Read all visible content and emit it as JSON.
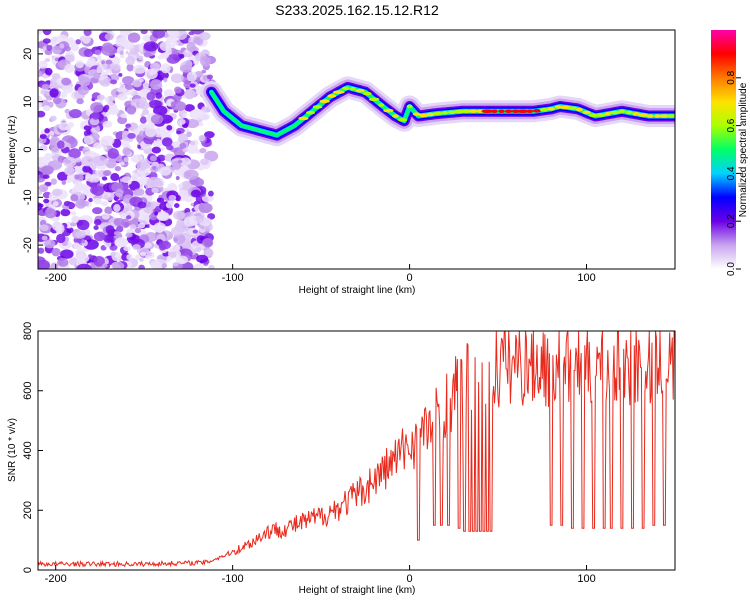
{
  "title": "S233.2025.162.15.12.R12",
  "chart_data": [
    {
      "type": "heatmap",
      "xlabel": "Height of straight line (km)",
      "ylabel": "Frequency (Hz)",
      "xlim": [
        -210,
        150
      ],
      "ylim": [
        -25,
        25
      ],
      "x_ticks": [
        "-200",
        "-100",
        "0",
        "100"
      ],
      "y_ticks": [
        "20",
        "10",
        "0",
        "-10",
        "-20"
      ],
      "noise_region_x": [
        -210,
        -112
      ],
      "ridge": {
        "x": [
          -112,
          -105,
          -95,
          -85,
          -75,
          -65,
          -55,
          -45,
          -35,
          -25,
          -15,
          -8,
          -3,
          0,
          5,
          15,
          30,
          50,
          70,
          80,
          85,
          95,
          105,
          120,
          135,
          150
        ],
        "y": [
          12,
          8,
          5,
          4,
          3,
          5,
          8,
          11,
          13,
          12,
          9,
          7,
          6,
          9,
          7,
          7.5,
          8,
          8,
          8,
          8.5,
          9,
          8.5,
          7,
          8,
          7,
          7
        ]
      },
      "colorbar": {
        "label": "Normalized spectral amplitude",
        "ticks": [
          "0.0",
          "0.2",
          "0.4",
          "0.6",
          "0.8"
        ],
        "range": [
          0,
          1
        ],
        "colors": [
          "#ffffff",
          "#c9a4ef",
          "#6a00e6",
          "#0000ff",
          "#00d2ff",
          "#00ff66",
          "#aaff00",
          "#ffe100",
          "#ff7a00",
          "#ff0000",
          "#ff00aa"
        ]
      },
      "grid": false
    },
    {
      "type": "line",
      "xlabel": "Height of straight line (km)",
      "ylabel": "SNR (10 * v/v)",
      "xlim": [
        -210,
        150
      ],
      "ylim": [
        0,
        800
      ],
      "x_ticks": [
        "-200",
        "-100",
        "0",
        "100"
      ],
      "y_ticks": [
        "800",
        "600",
        "400",
        "200",
        "0"
      ],
      "color": "#e8291c",
      "trend": {
        "x": [
          -210,
          -150,
          -115,
          -100,
          -90,
          -80,
          -70,
          -60,
          -50,
          -40,
          -30,
          -20,
          -10,
          0,
          10,
          20,
          30,
          40,
          50,
          60,
          80,
          100,
          120,
          140,
          150
        ],
        "y": [
          20,
          20,
          25,
          60,
          90,
          130,
          140,
          160,
          180,
          210,
          250,
          300,
          360,
          420,
          470,
          560,
          620,
          650,
          680,
          700,
          690,
          690,
          700,
          690,
          680
        ]
      },
      "dropouts": {
        "x": [
          5,
          14,
          18,
          22,
          28,
          31,
          34,
          36,
          38,
          40,
          42,
          44,
          46,
          80,
          86,
          92,
          98,
          104,
          110,
          114,
          120,
          126,
          132,
          138,
          144
        ],
        "y": [
          100,
          150,
          150,
          150,
          140,
          130,
          130,
          130,
          130,
          130,
          130,
          130,
          130,
          150,
          150,
          140,
          140,
          140,
          140,
          140,
          140,
          140,
          140,
          150,
          150
        ]
      },
      "grid": false
    }
  ]
}
